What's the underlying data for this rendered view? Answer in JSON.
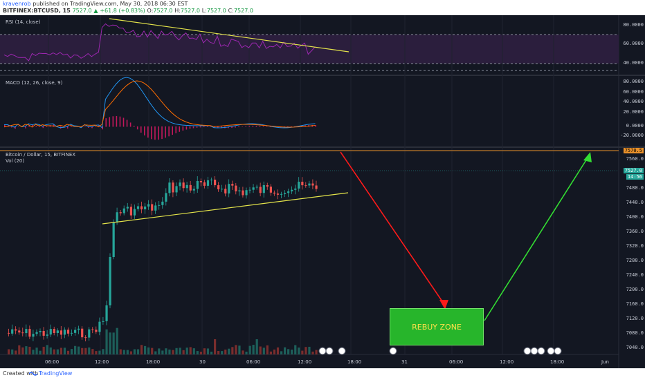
{
  "header": {
    "username": "kravenrob",
    "published": "published on TradingView.com, May 30, 2018 06:30 EST",
    "symbol": "BITFINEX:BTCUSD, 15",
    "last": "7527.0",
    "change": "+61.8 (+0.83%)",
    "o_label": "O:",
    "o_val": "7527.0",
    "h_label": "H:",
    "h_val": "7527.0",
    "l_label": "L:",
    "l_val": "7527.0",
    "c_label": "C:",
    "c_val": "7527.0"
  },
  "panes": {
    "rsi_label": "RSI (14, close)",
    "macd_label": "MACD (12, 26, close, 9)",
    "price_label": "Bitcoin / Dollar, 15, BITFINEX",
    "vol_label": "Vol (20)"
  },
  "rsi_ticks": [
    "80.0000",
    "60.0000",
    "40.0000"
  ],
  "macd_ticks": [
    "80.0000",
    "60.0000",
    "40.0000",
    "20.0000",
    "0.0000",
    "-20.0000"
  ],
  "price_ticks": [
    "7560.0",
    "7480.0",
    "7440.0",
    "7400.0",
    "7360.0",
    "7320.0",
    "7280.0",
    "7240.0",
    "7200.0",
    "7160.0",
    "7120.0",
    "7080.0",
    "7040.0"
  ],
  "tags": {
    "upper": "7570.5",
    "current": "7527.0",
    "countdown": "14:56"
  },
  "time_axis": [
    "06:00",
    "12:00",
    "18:00",
    "30",
    "06:00",
    "12:00",
    "18:00",
    "31",
    "06:00",
    "12:00",
    "18:00",
    "Jun"
  ],
  "rebuy_label": "REBUY ZONE",
  "footer": {
    "created": "Created with",
    "brand": "TradingView"
  },
  "colors": {
    "background": "#131722",
    "up": "#26a69a",
    "down": "#ef5350",
    "rsi": "#9c27b0",
    "trendline": "#e5e54b",
    "arrow_down": "#ff1a1a",
    "arrow_up": "#33dd33"
  }
}
